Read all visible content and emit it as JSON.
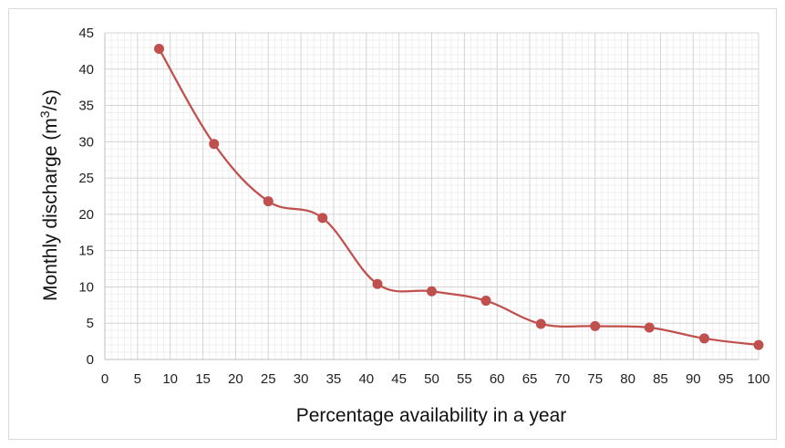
{
  "chart_data": {
    "type": "line",
    "title": "",
    "xlabel": "Percentage availability in a year",
    "ylabel_prefix": "Monthly discharge (m",
    "ylabel_sup": "3",
    "ylabel_suffix": "/s)",
    "xlim": [
      0,
      100
    ],
    "ylim": [
      0,
      45
    ],
    "xticks": [
      0,
      5,
      10,
      15,
      20,
      25,
      30,
      35,
      40,
      45,
      50,
      55,
      60,
      65,
      70,
      75,
      80,
      85,
      90,
      95,
      100
    ],
    "yticks": [
      0,
      5,
      10,
      15,
      20,
      25,
      30,
      35,
      40,
      45
    ],
    "grid": true,
    "minor_grid": true,
    "smooth": true,
    "color": "#c0504d",
    "series": [
      {
        "x": [
          8.3,
          16.7,
          25.0,
          33.3,
          41.7,
          50.0,
          58.3,
          66.7,
          75.0,
          83.3,
          91.7,
          100.0
        ],
        "y": [
          42.8,
          29.7,
          21.8,
          19.5,
          10.4,
          9.4,
          8.1,
          4.9,
          4.6,
          4.4,
          2.9,
          2.0
        ]
      }
    ]
  }
}
